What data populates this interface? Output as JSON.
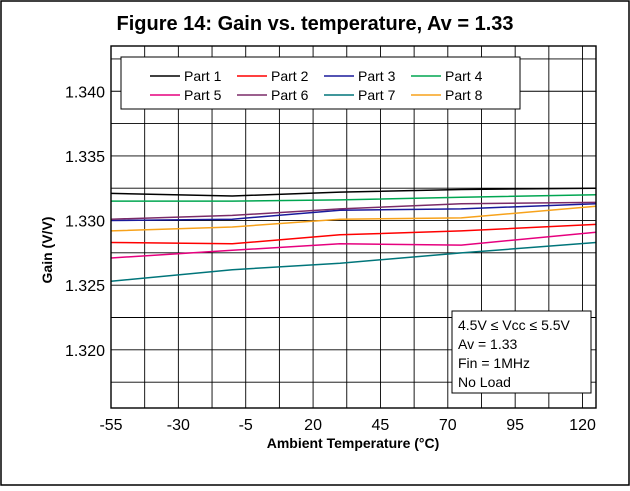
{
  "chart_data": {
    "type": "line",
    "title": "Figure 14: Gain vs. temperature, Av = 1.33",
    "xlabel": "Ambient Temperature (°C)",
    "ylabel": "Gain (V/V)",
    "xlim": [
      -55,
      125
    ],
    "ylim": [
      1.3155,
      1.3435
    ],
    "x_ticks": [
      -55,
      -30,
      -5,
      20,
      45,
      70,
      95,
      120
    ],
    "x_tick_labels": [
      "-55",
      "-30",
      "-5",
      "20",
      "45",
      "70",
      "95",
      "120"
    ],
    "y_ticks": [
      1.32,
      1.325,
      1.33,
      1.335,
      1.34
    ],
    "y_tick_labels": [
      "1.320",
      "1.325",
      "1.330",
      "1.335",
      "1.340"
    ],
    "grid": true,
    "legend_position": "top",
    "annotation": [
      "4.5V ≤ Vcc ≤ 5.5V",
      "Av = 1.33",
      "Fin = 1MHz",
      "No Load"
    ],
    "x": [
      -55,
      -10,
      30,
      75,
      125
    ],
    "series": [
      {
        "name": "Part 1",
        "color": "#000000",
        "values": [
          1.3321,
          1.3319,
          1.3322,
          1.3324,
          1.3325
        ]
      },
      {
        "name": "Part 2",
        "color": "#ff0000",
        "values": [
          1.3283,
          1.3282,
          1.3289,
          1.3292,
          1.3297
        ]
      },
      {
        "name": "Part 3",
        "color": "#1a1a9c",
        "values": [
          1.33,
          1.3301,
          1.3308,
          1.3309,
          1.3313
        ]
      },
      {
        "name": "Part 4",
        "color": "#00a651",
        "values": [
          1.3315,
          1.3315,
          1.3316,
          1.3318,
          1.332
        ]
      },
      {
        "name": "Part 5",
        "color": "#e6007e",
        "values": [
          1.3271,
          1.3277,
          1.3282,
          1.3281,
          1.3291
        ]
      },
      {
        "name": "Part 6",
        "color": "#7b2b68",
        "values": [
          1.3301,
          1.3304,
          1.3309,
          1.3313,
          1.3314
        ]
      },
      {
        "name": "Part 7",
        "color": "#00757a",
        "values": [
          1.3253,
          1.3262,
          1.3267,
          1.3275,
          1.3283
        ]
      },
      {
        "name": "Part 8",
        "color": "#f7a21b",
        "values": [
          1.3292,
          1.3295,
          1.3301,
          1.3302,
          1.3311
        ]
      }
    ]
  }
}
